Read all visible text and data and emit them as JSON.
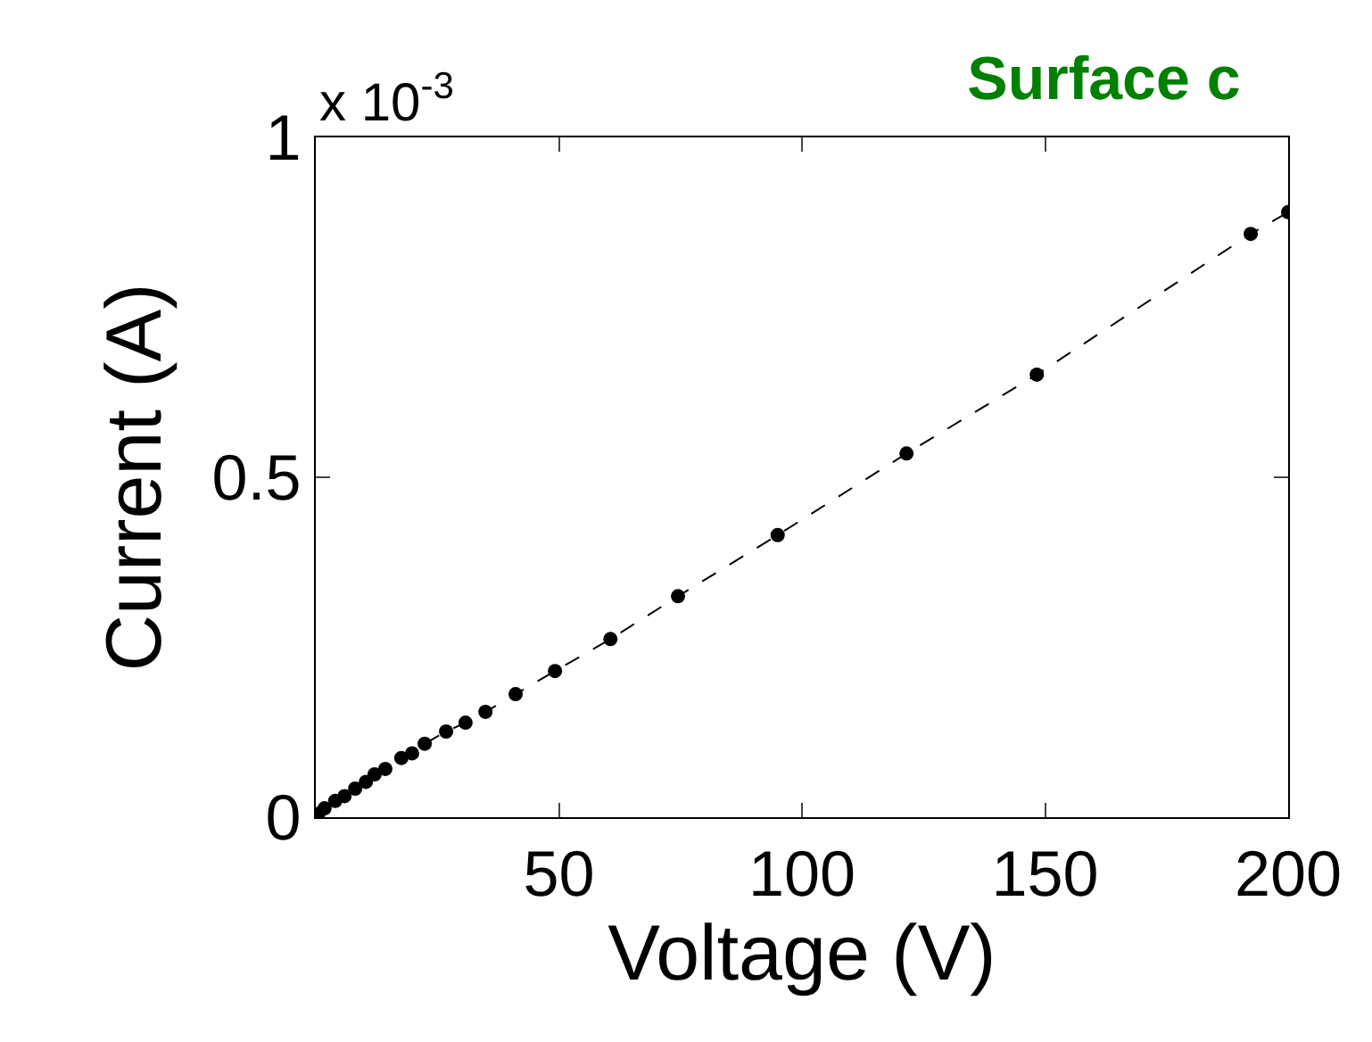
{
  "chart_data": {
    "type": "line",
    "title": "Surface c",
    "xlabel": "Voltage (V)",
    "ylabel": "Current (A)",
    "annotations": [
      "x 10$^{-3}$"
    ],
    "x": [
      0.5,
      1.8,
      4.0,
      5.9,
      8.1,
      10.3,
      12.1,
      14.3,
      17.6,
      19.8,
      22.4,
      26.8,
      30.8,
      34.9,
      41.1,
      49.2,
      60.6,
      74.5,
      95,
      121.5,
      148.3,
      192.3,
      200
    ],
    "series": [
      {
        "color": "#000000",
        "values": [
          0.005,
          0.013,
          0.024,
          0.031,
          0.042,
          0.052,
          0.063,
          0.071,
          0.087,
          0.094,
          0.108,
          0.126,
          0.139,
          0.155,
          0.181,
          0.215,
          0.262,
          0.325,
          0.415,
          0.535,
          0.651,
          0.858,
          0.89
        ]
      }
    ],
    "marker": "circle",
    "line_style": "dashed",
    "xlim": [
      0,
      200
    ],
    "xticks": [
      50,
      100,
      150,
      200
    ],
    "ylim": [
      0,
      1
    ],
    "yticks": [
      0,
      0.5,
      1
    ]
  }
}
